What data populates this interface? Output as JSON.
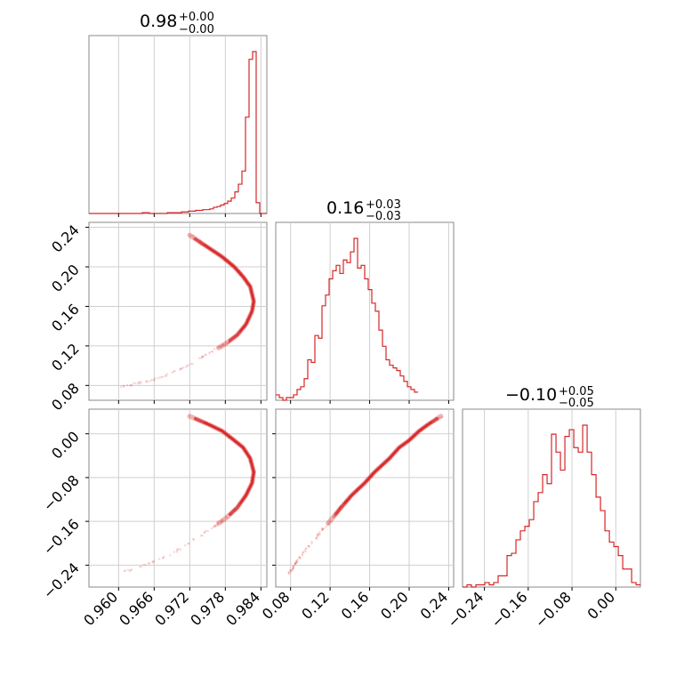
{
  "chart_data": {
    "type": "corner",
    "color": "#d62728",
    "titles": [
      {
        "median": "0.98",
        "plus": "+0.00",
        "minus": "−0.00"
      },
      {
        "median": "0.16",
        "plus": "+0.03",
        "minus": "−0.03"
      },
      {
        "median": "−0.10",
        "plus": "+0.05",
        "minus": "−0.05"
      }
    ],
    "params": [
      {
        "range": [
          0.955,
          0.985
        ],
        "ticks": [
          0.96,
          0.966,
          0.972,
          0.978,
          0.984
        ],
        "tick_labels": [
          "0.960",
          "0.966",
          "0.972",
          "0.978",
          "0.984"
        ]
      },
      {
        "range": [
          0.065,
          0.245
        ],
        "ticks": [
          0.08,
          0.12,
          0.16,
          0.2,
          0.24
        ],
        "tick_labels": [
          "0.08",
          "0.12",
          "0.16",
          "0.20",
          "0.24"
        ]
      },
      {
        "range": [
          -0.28,
          0.045
        ],
        "ticks": [
          -0.24,
          -0.16,
          -0.08,
          0.0
        ],
        "tick_labels": [
          "−0.24",
          "−0.16",
          "−0.08",
          "0.00"
        ]
      }
    ],
    "hist1": {
      "edges_start": 0.955,
      "bin_width": 0.0006,
      "counts": [
        0,
        0,
        0,
        0,
        0,
        0,
        0,
        0,
        0,
        0,
        0,
        0,
        0,
        0,
        0,
        1,
        1,
        0,
        0,
        0,
        0,
        0,
        1,
        1,
        1,
        1,
        2,
        2,
        3,
        3,
        4,
        4,
        5,
        5,
        6,
        8,
        9,
        11,
        13,
        16,
        20,
        28,
        38,
        55,
        125,
        200,
        210,
        14,
        0,
        0
      ]
    },
    "hist2": {
      "edges_start": 0.065,
      "bin_width": 0.0036,
      "counts": [
        2,
        1,
        0,
        1,
        1,
        2,
        4,
        5,
        8,
        15,
        14,
        24,
        23,
        35,
        39,
        45,
        48,
        50,
        47,
        52,
        51,
        55,
        60,
        49,
        50,
        45,
        41,
        36,
        33,
        26,
        20,
        15,
        13,
        12,
        11,
        9,
        7,
        5,
        4,
        3
      ]
    },
    "hist3": {
      "edges_start": -0.28,
      "bin_width": 0.00813,
      "counts": [
        0,
        1,
        0,
        1,
        1,
        2,
        1,
        2,
        5,
        5,
        14,
        15,
        21,
        25,
        27,
        30,
        38,
        42,
        50,
        46,
        68,
        60,
        52,
        67,
        70,
        62,
        60,
        72,
        60,
        50,
        40,
        34,
        25,
        20,
        18,
        14,
        8,
        8,
        2,
        1
      ]
    },
    "joint_curve": {
      "note_t": [
        -0.12,
        0.25
      ],
      "points": [
        [
          0.96,
          0.078,
          -0.255
        ],
        [
          0.963,
          0.082,
          -0.245
        ],
        [
          0.966,
          0.086,
          -0.233
        ],
        [
          0.97,
          0.095,
          -0.213
        ],
        [
          0.974,
          0.108,
          -0.185
        ],
        [
          0.976,
          0.115,
          -0.17
        ],
        [
          0.978,
          0.122,
          -0.155
        ],
        [
          0.98,
          0.131,
          -0.135
        ],
        [
          0.9815,
          0.142,
          -0.112
        ],
        [
          0.9825,
          0.155,
          -0.09
        ],
        [
          0.9828,
          0.165,
          -0.07
        ],
        [
          0.9822,
          0.18,
          -0.045
        ],
        [
          0.981,
          0.19,
          -0.025
        ],
        [
          0.9795,
          0.2,
          -0.012
        ],
        [
          0.9775,
          0.21,
          0.005
        ],
        [
          0.975,
          0.22,
          0.018
        ],
        [
          0.972,
          0.232,
          0.032
        ]
      ]
    }
  }
}
